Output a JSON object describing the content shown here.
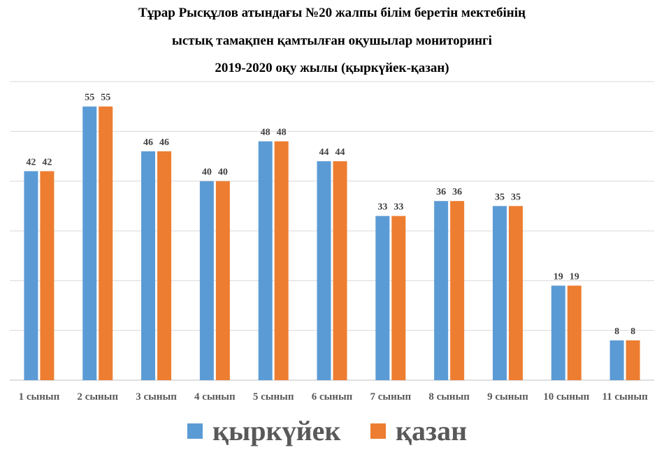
{
  "chart_data": {
    "type": "bar",
    "title": [
      "Тұрар Рысқұлов атындағы №20 жалпы білім беретін мектебінің",
      "ыстық тамақпен қамтылған оқушылар мониторингі",
      "2019-2020 оқу жылы (қыркүйек-қазан)"
    ],
    "categories": [
      "1 сынып",
      "2 сынып",
      "3 сынып",
      "4 сынып",
      "5 сынып",
      "6 сынып",
      "7 сынып",
      "8 сынып",
      "9 сынып",
      "10 сынып",
      "11 сынып"
    ],
    "series": [
      {
        "name": "қыркүйек",
        "color": "#5B9BD5",
        "values": [
          42,
          55,
          46,
          40,
          48,
          44,
          33,
          36,
          35,
          19,
          8
        ]
      },
      {
        "name": "қазан",
        "color": "#ED7D31",
        "values": [
          42,
          55,
          46,
          40,
          48,
          44,
          33,
          36,
          35,
          19,
          8
        ]
      }
    ],
    "ylim": [
      0,
      60
    ],
    "grid": true,
    "data_labels": true,
    "legend": "bottom"
  }
}
